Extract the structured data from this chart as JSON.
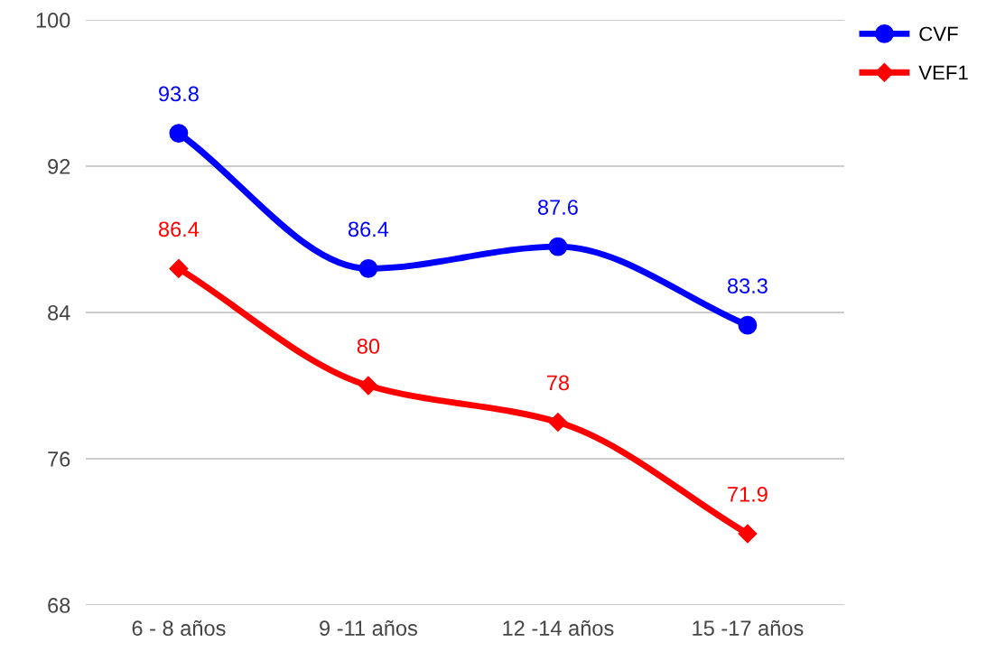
{
  "chart_data": {
    "type": "line",
    "categories": [
      "6 - 8 años",
      "9 -11 años",
      "12 -14 años",
      "15 -17 años"
    ],
    "series": [
      {
        "name": "CVF",
        "color": "#0000ff",
        "marker": "circle",
        "values": [
          93.8,
          86.4,
          87.6,
          83.3
        ]
      },
      {
        "name": "VEF1",
        "color": "#ff0000",
        "marker": "diamond",
        "values": [
          86.4,
          80,
          78,
          71.9
        ]
      }
    ],
    "ylim": [
      68,
      100
    ],
    "yticks": [
      68,
      76,
      84,
      92,
      100
    ],
    "grid": "y",
    "legend": "top right",
    "data_labels": true,
    "line_style": "solid"
  }
}
